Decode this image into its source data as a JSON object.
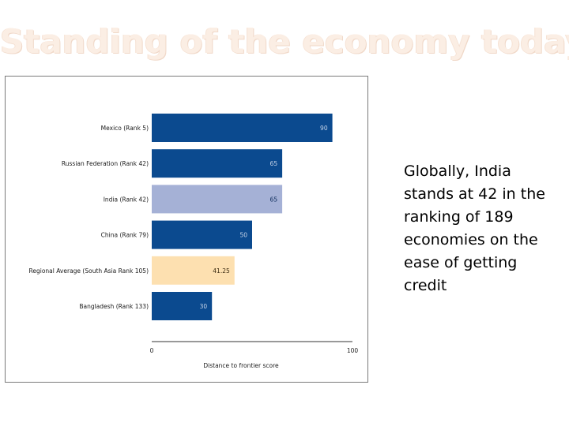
{
  "slide": {
    "title": "Standing of the economy today",
    "side_text": "Globally, India stands at 42 in the ranking of 189 economies on the ease of getting credit"
  },
  "chart_data": {
    "type": "bar",
    "orientation": "horizontal",
    "categories": [
      "Mexico (Rank 5)",
      "Russian Federation (Rank 42)",
      "India (Rank 42)",
      "China (Rank 79)",
      "Regional Average (South Asia Rank 105)",
      "Bangladesh (Rank 133)"
    ],
    "values": [
      90,
      65,
      65,
      50,
      41.25,
      30
    ],
    "value_labels": [
      "90",
      "65",
      "65",
      "50",
      "41.25",
      "30"
    ],
    "bar_colors": [
      "#0b4a8f",
      "#0b4a8f",
      "#a5b1d6",
      "#0b4a8f",
      "#fde0b0",
      "#0b4a8f"
    ],
    "label_colors": [
      "#c9d6ea",
      "#c9d6ea",
      "#0b2a5a",
      "#c9d6ea",
      "#3a2a10",
      "#c9d6ea"
    ],
    "xlim": [
      0,
      100
    ],
    "x_ticks": [
      "0",
      "100"
    ],
    "xlabel": "Distance to frontier score",
    "title": "",
    "ylabel": "",
    "grid": false
  }
}
